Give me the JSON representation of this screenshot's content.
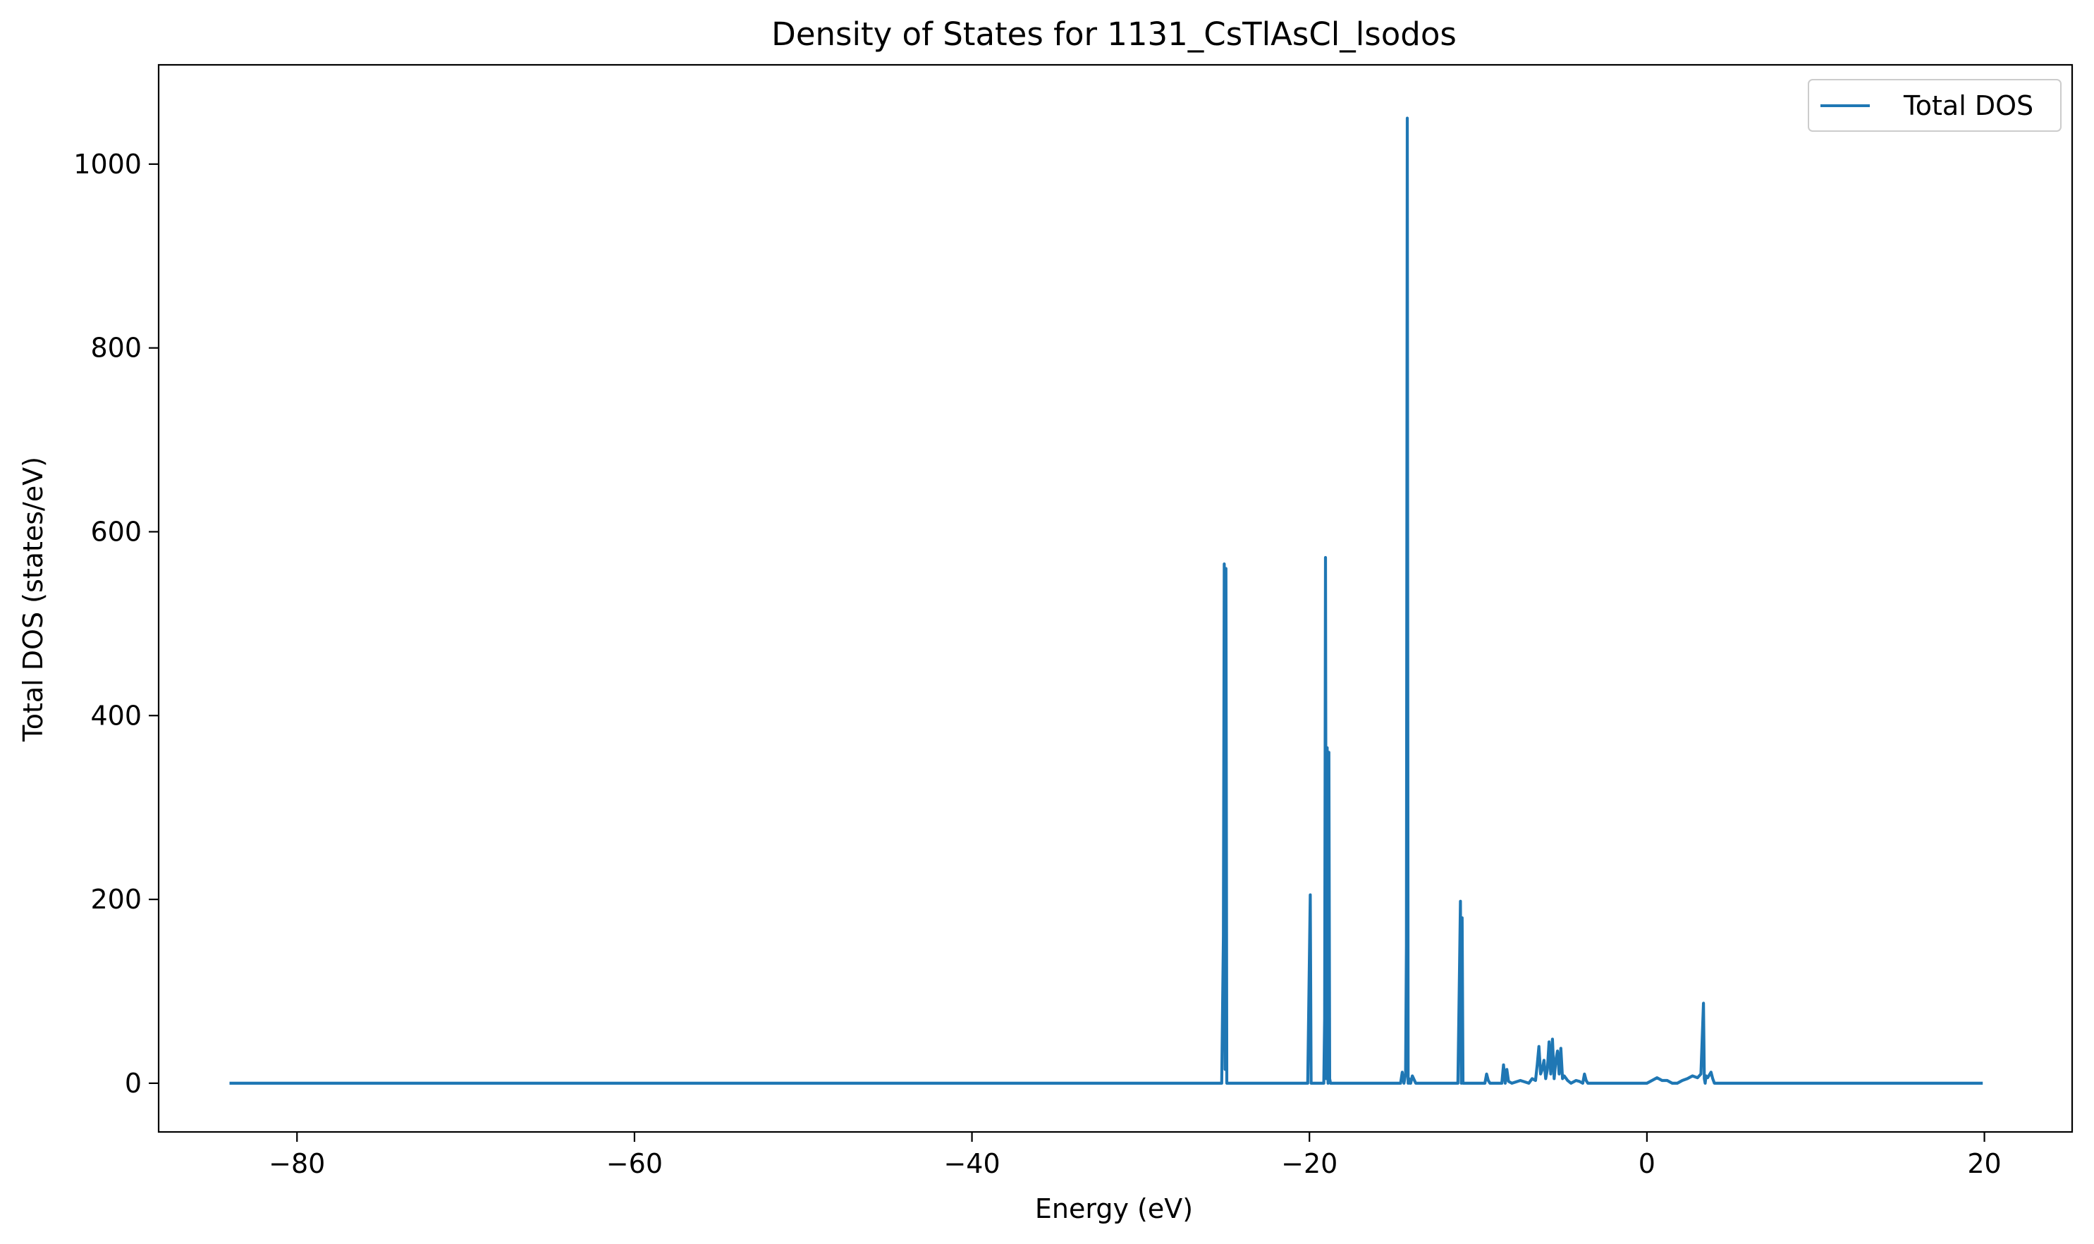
{
  "chart_data": {
    "type": "line",
    "title": "Density of States for 1131_CsTlAsCl_lsodos",
    "xlabel": "Energy (eV)",
    "ylabel": "Total DOS (states/eV)",
    "xlim": [
      -88.2,
      25.2
    ],
    "ylim": [
      -53,
      1108
    ],
    "xticks": [
      -80,
      -60,
      -40,
      -20,
      0,
      20
    ],
    "xtick_labels": [
      "−80",
      "−60",
      "−40",
      "−20",
      "0",
      "20"
    ],
    "yticks": [
      0,
      200,
      400,
      600,
      800,
      1000
    ],
    "ytick_labels": [
      "0",
      "200",
      "400",
      "600",
      "800",
      "1000"
    ],
    "grid": false,
    "legend_position": "top-right",
    "series": [
      {
        "name": "Total DOS",
        "color": "#1f77b4",
        "x": [
          -84.0,
          -26.0,
          -25.2,
          -25.1,
          -25.05,
          -25.0,
          -24.95,
          -24.9,
          -24.8,
          -21.0,
          -20.1,
          -19.95,
          -19.9,
          -19.85,
          -19.7,
          -19.3,
          -19.15,
          -19.1,
          -19.05,
          -19.0,
          -18.95,
          -18.9,
          -18.85,
          -18.8,
          -18.75,
          -18.7,
          -18.6,
          -15.0,
          -14.6,
          -14.5,
          -14.4,
          -14.3,
          -14.25,
          -14.2,
          -14.15,
          -14.1,
          -14.05,
          -14.0,
          -13.9,
          -13.7,
          -13.6,
          -13.5,
          -13.4,
          -13.3,
          -12.0,
          -11.2,
          -11.1,
          -11.05,
          -11.0,
          -10.95,
          -10.9,
          -10.8,
          -10.5,
          -9.6,
          -9.5,
          -9.4,
          -9.3,
          -9.0,
          -8.6,
          -8.5,
          -8.4,
          -8.3,
          -8.2,
          -8.0,
          -7.5,
          -7.0,
          -6.8,
          -6.6,
          -6.5,
          -6.4,
          -6.3,
          -6.2,
          -6.1,
          -6.0,
          -5.9,
          -5.8,
          -5.7,
          -5.6,
          -5.5,
          -5.4,
          -5.3,
          -5.2,
          -5.1,
          -5.0,
          -4.9,
          -4.7,
          -4.5,
          -4.2,
          -4.0,
          -3.8,
          -3.7,
          -3.6,
          -3.5,
          -3.0,
          -2.5,
          0.0,
          0.3,
          0.6,
          0.9,
          1.2,
          1.5,
          1.8,
          2.1,
          2.4,
          2.7,
          3.0,
          3.2,
          3.35,
          3.4,
          3.45,
          3.5,
          3.6,
          3.8,
          3.9,
          4.0,
          4.1,
          4.3,
          4.5,
          19.9
        ],
        "y": [
          0,
          0,
          0,
          160,
          565,
          15,
          560,
          0,
          0,
          0,
          0,
          205,
          0,
          0,
          0,
          0,
          0,
          70,
          572,
          5,
          365,
          0,
          360,
          5,
          0,
          0,
          0,
          0,
          0,
          12,
          0,
          10,
          150,
          1050,
          0,
          5,
          0,
          0,
          8,
          0,
          0,
          0,
          0,
          0,
          0,
          0,
          130,
          198,
          0,
          180,
          0,
          0,
          0,
          0,
          10,
          3,
          0,
          0,
          0,
          20,
          0,
          15,
          2,
          0,
          3,
          0,
          5,
          3,
          20,
          40,
          10,
          15,
          25,
          5,
          15,
          45,
          10,
          48,
          5,
          25,
          35,
          10,
          38,
          5,
          8,
          3,
          0,
          3,
          2,
          0,
          10,
          3,
          0,
          0,
          0,
          0,
          3,
          6,
          3,
          3,
          0,
          0,
          3,
          5,
          8,
          6,
          10,
          87,
          5,
          0,
          8,
          6,
          12,
          5,
          0,
          0,
          0,
          0,
          0
        ]
      }
    ]
  }
}
